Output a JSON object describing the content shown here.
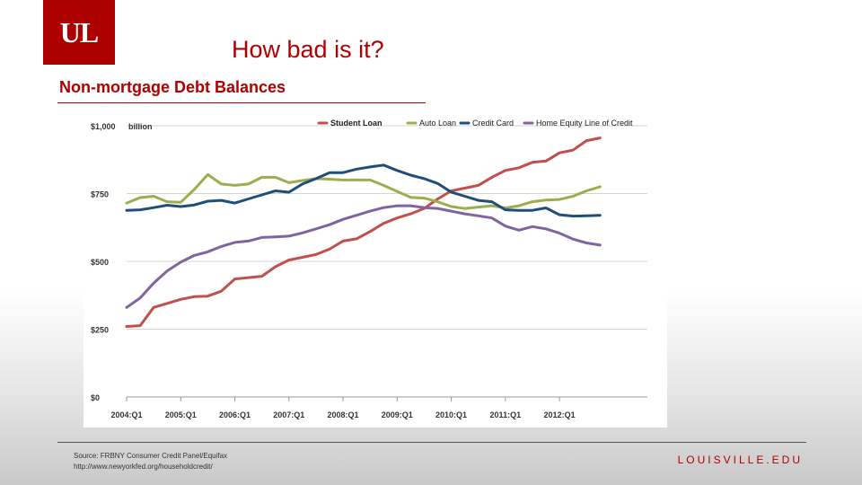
{
  "header": {
    "logo_text": "UL",
    "logo_color": "#ad0000",
    "title": "How bad is it?",
    "subtitle": "Non-mortgage Debt Balances"
  },
  "footer": {
    "source_line1": "Source: FRBNY Consumer Credit Panel/Equifax",
    "source_line2": "http://www.newyorkfed.org/householdcredit/",
    "brand": "LOUISVILLE.EDU"
  },
  "chart_data": {
    "type": "line",
    "ylabel_unit": "billion",
    "ylim": [
      0,
      1000
    ],
    "yticks": [
      0,
      250,
      500,
      750,
      1000
    ],
    "ytick_labels": [
      "$0",
      "$250",
      "$500",
      "$750",
      "$1,000"
    ],
    "xtick_labels": [
      "2004:Q1",
      "2005:Q1",
      "2006:Q1",
      "2007:Q1",
      "2008:Q1",
      "2009:Q1",
      "2010:Q1",
      "2011:Q1",
      "2012:Q1"
    ],
    "x_start": "2004:Q1",
    "x_end": "2012:Q4",
    "legend_position": "top",
    "grid": true,
    "series": [
      {
        "name": "Student Loan",
        "color": "#c1504d",
        "values": [
          260,
          263,
          330,
          345,
          360,
          370,
          372,
          390,
          435,
          440,
          445,
          480,
          505,
          515,
          525,
          545,
          575,
          583,
          610,
          640,
          660,
          675,
          695,
          730,
          760,
          770,
          780,
          810,
          835,
          845,
          865,
          870,
          900,
          910,
          945,
          955
        ]
      },
      {
        "name": "Auto Loan",
        "color": "#9bae4f",
        "values": [
          715,
          735,
          740,
          720,
          718,
          765,
          820,
          785,
          780,
          785,
          810,
          810,
          790,
          798,
          805,
          803,
          800,
          800,
          800,
          780,
          758,
          736,
          733,
          720,
          702,
          695,
          700,
          705,
          697,
          705,
          720,
          726,
          728,
          740,
          760,
          775
        ]
      },
      {
        "name": "Credit Card",
        "color": "#1f4e79",
        "values": [
          688,
          690,
          698,
          707,
          702,
          708,
          722,
          725,
          715,
          730,
          745,
          760,
          755,
          785,
          805,
          827,
          827,
          840,
          848,
          855,
          835,
          818,
          805,
          787,
          755,
          740,
          725,
          720,
          690,
          688,
          688,
          697,
          672,
          667,
          668,
          670
        ]
      },
      {
        "name": "Home Equity Line of Credit",
        "color": "#8064a2",
        "values": [
          330,
          365,
          420,
          465,
          497,
          522,
          535,
          555,
          570,
          575,
          588,
          590,
          593,
          605,
          620,
          635,
          655,
          670,
          685,
          698,
          705,
          705,
          698,
          695,
          685,
          675,
          668,
          660,
          630,
          615,
          628,
          620,
          604,
          582,
          568,
          560
        ]
      }
    ]
  }
}
